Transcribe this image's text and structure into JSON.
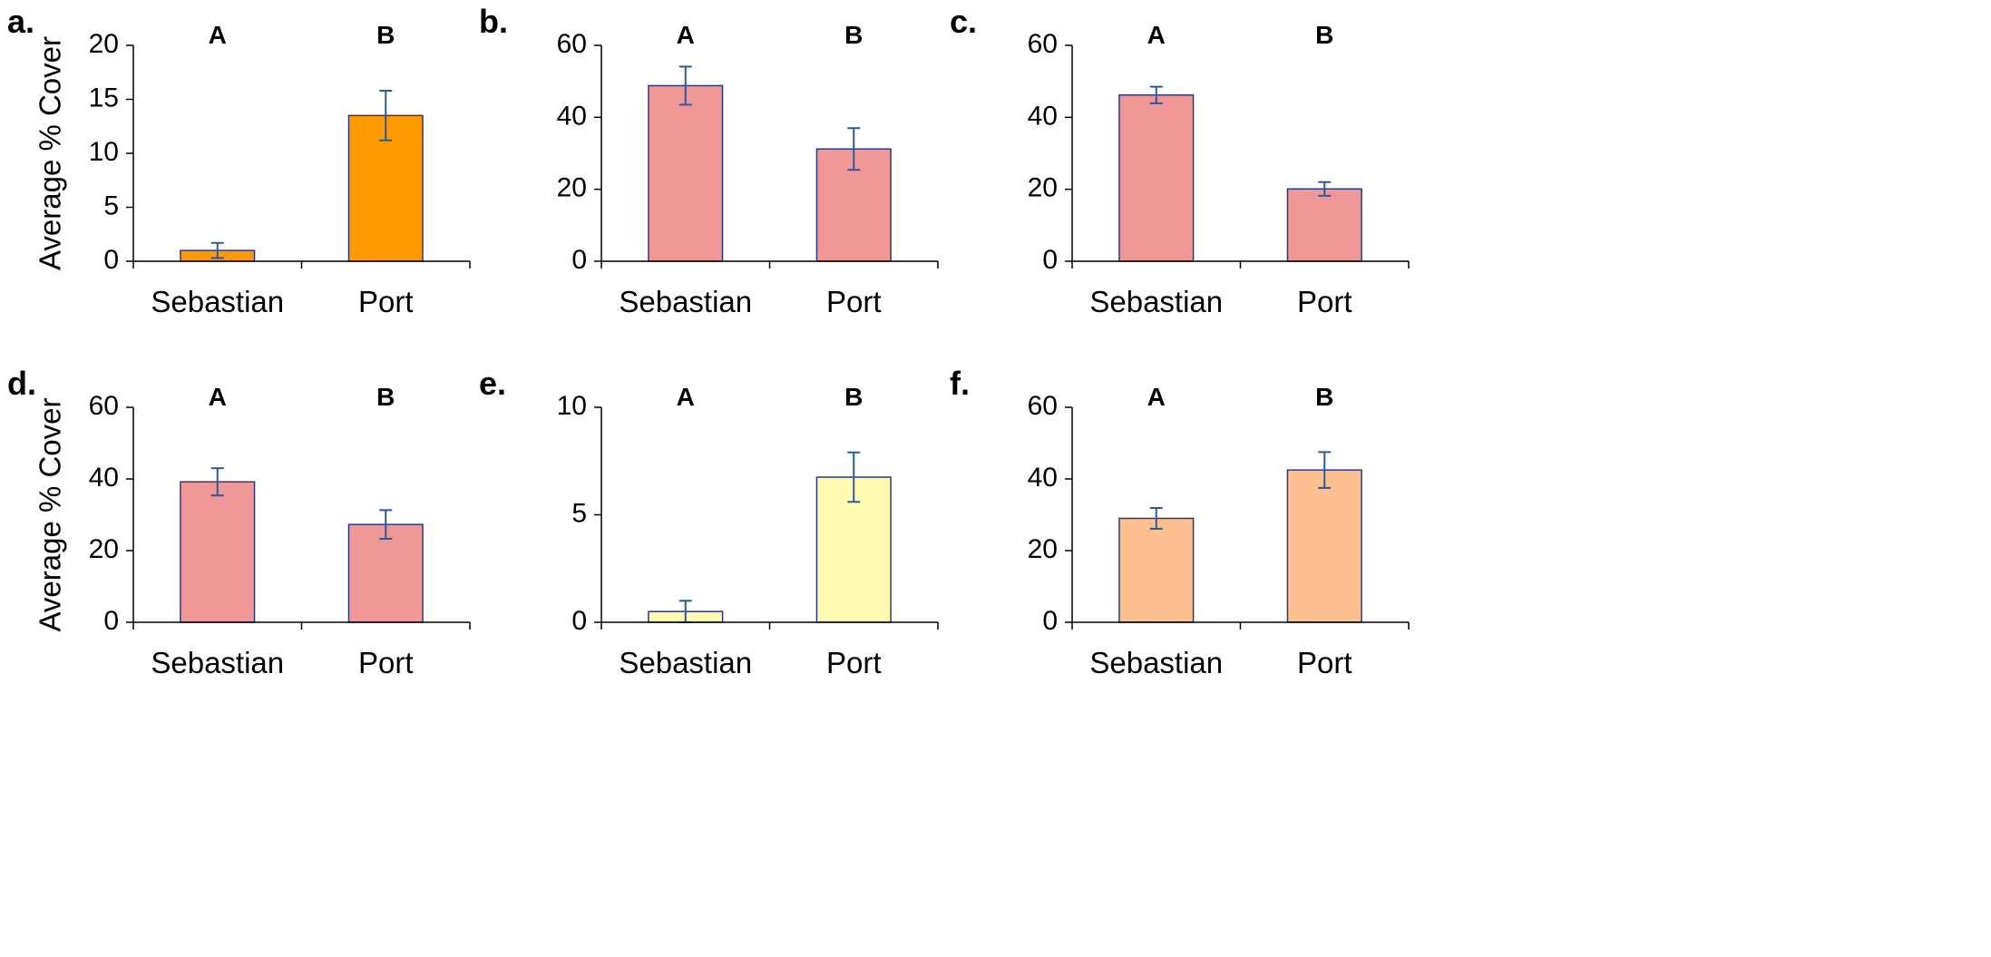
{
  "chart_data": [
    {
      "type": "bar",
      "panel": "a.",
      "categories": [
        "Sebastian",
        "Port"
      ],
      "values": [
        1.0,
        13.5
      ],
      "errors": [
        0.7,
        2.3
      ],
      "group_labels": [
        "A",
        "B"
      ],
      "ylabel": "Average % Cover",
      "ylim": [
        0,
        20
      ],
      "yticks": [
        0,
        5,
        10,
        15,
        20
      ],
      "ytick_labels": [
        "0",
        "5",
        "10",
        "15",
        "20"
      ],
      "color": "#ff9a00"
    },
    {
      "type": "bar",
      "panel": "b.",
      "categories": [
        "Sebastian",
        "Port"
      ],
      "values": [
        48.8,
        31.2
      ],
      "errors": [
        5.3,
        5.8
      ],
      "group_labels": [
        "A",
        "B"
      ],
      "ylabel": "",
      "ylim": [
        0,
        60
      ],
      "yticks": [
        0,
        20,
        40,
        60
      ],
      "ytick_labels": [
        "0",
        "20",
        "40",
        "60"
      ],
      "color": "#f09898"
    },
    {
      "type": "bar",
      "panel": "c.",
      "categories": [
        "Sebastian",
        "Port"
      ],
      "values": [
        46.2,
        20.1
      ],
      "errors": [
        2.3,
        1.9
      ],
      "group_labels": [
        "A",
        "B"
      ],
      "ylabel": "",
      "ylim": [
        0,
        60
      ],
      "yticks": [
        0,
        20,
        40,
        60
      ],
      "ytick_labels": [
        "0",
        "20",
        "40",
        "60"
      ],
      "color": "#f09898"
    },
    {
      "type": "bar",
      "panel": "d.",
      "categories": [
        "Sebastian",
        "Port"
      ],
      "values": [
        39.2,
        27.3
      ],
      "errors": [
        3.8,
        4.0
      ],
      "group_labels": [
        "A",
        "B"
      ],
      "ylabel": "Average % Cover",
      "ylim": [
        0,
        60
      ],
      "yticks": [
        0,
        20,
        40,
        60
      ],
      "ytick_labels": [
        "0",
        "20",
        "40",
        "60"
      ],
      "color": "#f09898"
    },
    {
      "type": "bar",
      "panel": "e.",
      "categories": [
        "Sebastian",
        "Port"
      ],
      "values": [
        0.5,
        6.75
      ],
      "errors": [
        0.5,
        1.15
      ],
      "group_labels": [
        "A",
        "B"
      ],
      "ylabel": "",
      "ylim": [
        0,
        10
      ],
      "yticks": [
        0,
        5,
        10
      ],
      "ytick_labels": [
        "0",
        "5",
        "10"
      ],
      "color": "#fffbb3"
    },
    {
      "type": "bar",
      "panel": "f.",
      "categories": [
        "Sebastian",
        "Port"
      ],
      "values": [
        29.0,
        42.5
      ],
      "errors": [
        2.9,
        5.0
      ],
      "group_labels": [
        "A",
        "B"
      ],
      "ylabel": "",
      "ylim": [
        0,
        60
      ],
      "yticks": [
        0,
        20,
        40,
        60
      ],
      "ytick_labels": [
        "0",
        "20",
        "40",
        "60"
      ],
      "color": "#fec090"
    }
  ]
}
